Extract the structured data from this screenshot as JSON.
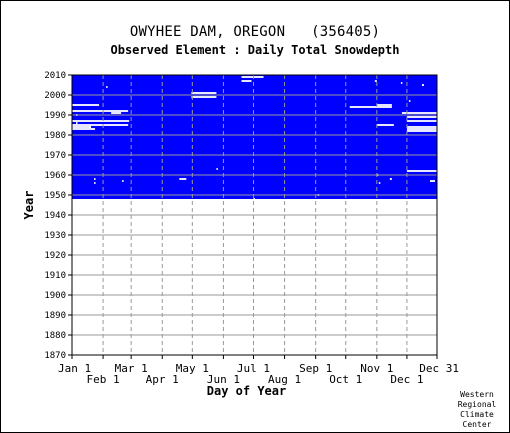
{
  "chart_data": {
    "type": "heatmap",
    "title": "OWYHEE DAM, OREGON",
    "station_id": "(356405)",
    "subtitle": "Observed Element : Daily Total Snowdepth",
    "xlabel": "Day of Year",
    "ylabel": "Year",
    "xlim": [
      1,
      365
    ],
    "ylim": [
      1870,
      2010
    ],
    "grid": true,
    "colors": {
      "data": "#0000ff",
      "missing": "#ffffff",
      "grid": "#999999",
      "axes": "#000000"
    },
    "x_ticks_row1": [
      {
        "label": "Jan 1",
        "day": 1
      },
      {
        "label": "Mar 1",
        "day": 60
      },
      {
        "label": "May 1",
        "day": 121
      },
      {
        "label": "Jul 1",
        "day": 182
      },
      {
        "label": "Sep 1",
        "day": 244
      },
      {
        "label": "Nov 1",
        "day": 305
      },
      {
        "label": "Dec 31",
        "day": 365
      }
    ],
    "x_ticks_row2": [
      {
        "label": "Feb 1",
        "day": 32
      },
      {
        "label": "Apr 1",
        "day": 91
      },
      {
        "label": "Jun 1",
        "day": 152
      },
      {
        "label": "Aug 1",
        "day": 213
      },
      {
        "label": "Oct 1",
        "day": 274
      },
      {
        "label": "Dec 1",
        "day": 335
      }
    ],
    "y_ticks": [
      1870,
      1880,
      1890,
      1900,
      1910,
      1920,
      1930,
      1940,
      1950,
      1960,
      1970,
      1980,
      1990,
      2000,
      2010
    ],
    "record_start_year": 1948,
    "record_end_year": 2010,
    "missing_segments": [
      {
        "year": 1995,
        "start": 1,
        "end": 28
      },
      {
        "year": 1992,
        "start": 1,
        "end": 57
      },
      {
        "year": 1991,
        "start": 40,
        "end": 50
      },
      {
        "year": 1987,
        "start": 1,
        "end": 58
      },
      {
        "year": 1985,
        "start": 1,
        "end": 57
      },
      {
        "year": 1984,
        "start": 1,
        "end": 20
      },
      {
        "year": 1983,
        "start": 1,
        "end": 24
      },
      {
        "year": 1995,
        "start": 305,
        "end": 320
      },
      {
        "year": 1994,
        "start": 278,
        "end": 320
      },
      {
        "year": 1991,
        "start": 330,
        "end": 365
      },
      {
        "year": 1989,
        "start": 335,
        "end": 365
      },
      {
        "year": 1987,
        "start": 335,
        "end": 365
      },
      {
        "year": 1985,
        "start": 305,
        "end": 322
      },
      {
        "year": 1984,
        "start": 335,
        "end": 365
      },
      {
        "year": 1983,
        "start": 335,
        "end": 365
      },
      {
        "year": 1982,
        "start": 335,
        "end": 365
      },
      {
        "year": 1962,
        "start": 335,
        "end": 365
      },
      {
        "year": 2009,
        "start": 170,
        "end": 192
      },
      {
        "year": 2007,
        "start": 170,
        "end": 180
      },
      {
        "year": 2001,
        "start": 120,
        "end": 145
      },
      {
        "year": 1999,
        "start": 120,
        "end": 145
      },
      {
        "year": 1958,
        "start": 108,
        "end": 115
      },
      {
        "year": 1957,
        "start": 358,
        "end": 363
      },
      {
        "year": 1956,
        "start": 23,
        "end": 24
      },
      {
        "year": 1958,
        "start": 23,
        "end": 24
      },
      {
        "year": 1957,
        "start": 51,
        "end": 52
      },
      {
        "year": 2004,
        "start": 35,
        "end": 36
      },
      {
        "year": 1990,
        "start": 5,
        "end": 6
      },
      {
        "year": 1986,
        "start": 5,
        "end": 6
      },
      {
        "year": 1984,
        "start": 18,
        "end": 19
      },
      {
        "year": 2007,
        "start": 303,
        "end": 305
      },
      {
        "year": 2006,
        "start": 329,
        "end": 330
      },
      {
        "year": 2005,
        "start": 350,
        "end": 352
      },
      {
        "year": 1997,
        "start": 337,
        "end": 338
      },
      {
        "year": 1960,
        "start": 305,
        "end": 306
      },
      {
        "year": 1958,
        "start": 318,
        "end": 320
      },
      {
        "year": 1956,
        "start": 307,
        "end": 308
      },
      {
        "year": 1963,
        "start": 145,
        "end": 146
      },
      {
        "year": 1950,
        "start": 246,
        "end": 247
      },
      {
        "year": 1948,
        "start": 182,
        "end": 183
      }
    ]
  },
  "credit": [
    "Western",
    "Regional",
    "Climate",
    "Center"
  ]
}
